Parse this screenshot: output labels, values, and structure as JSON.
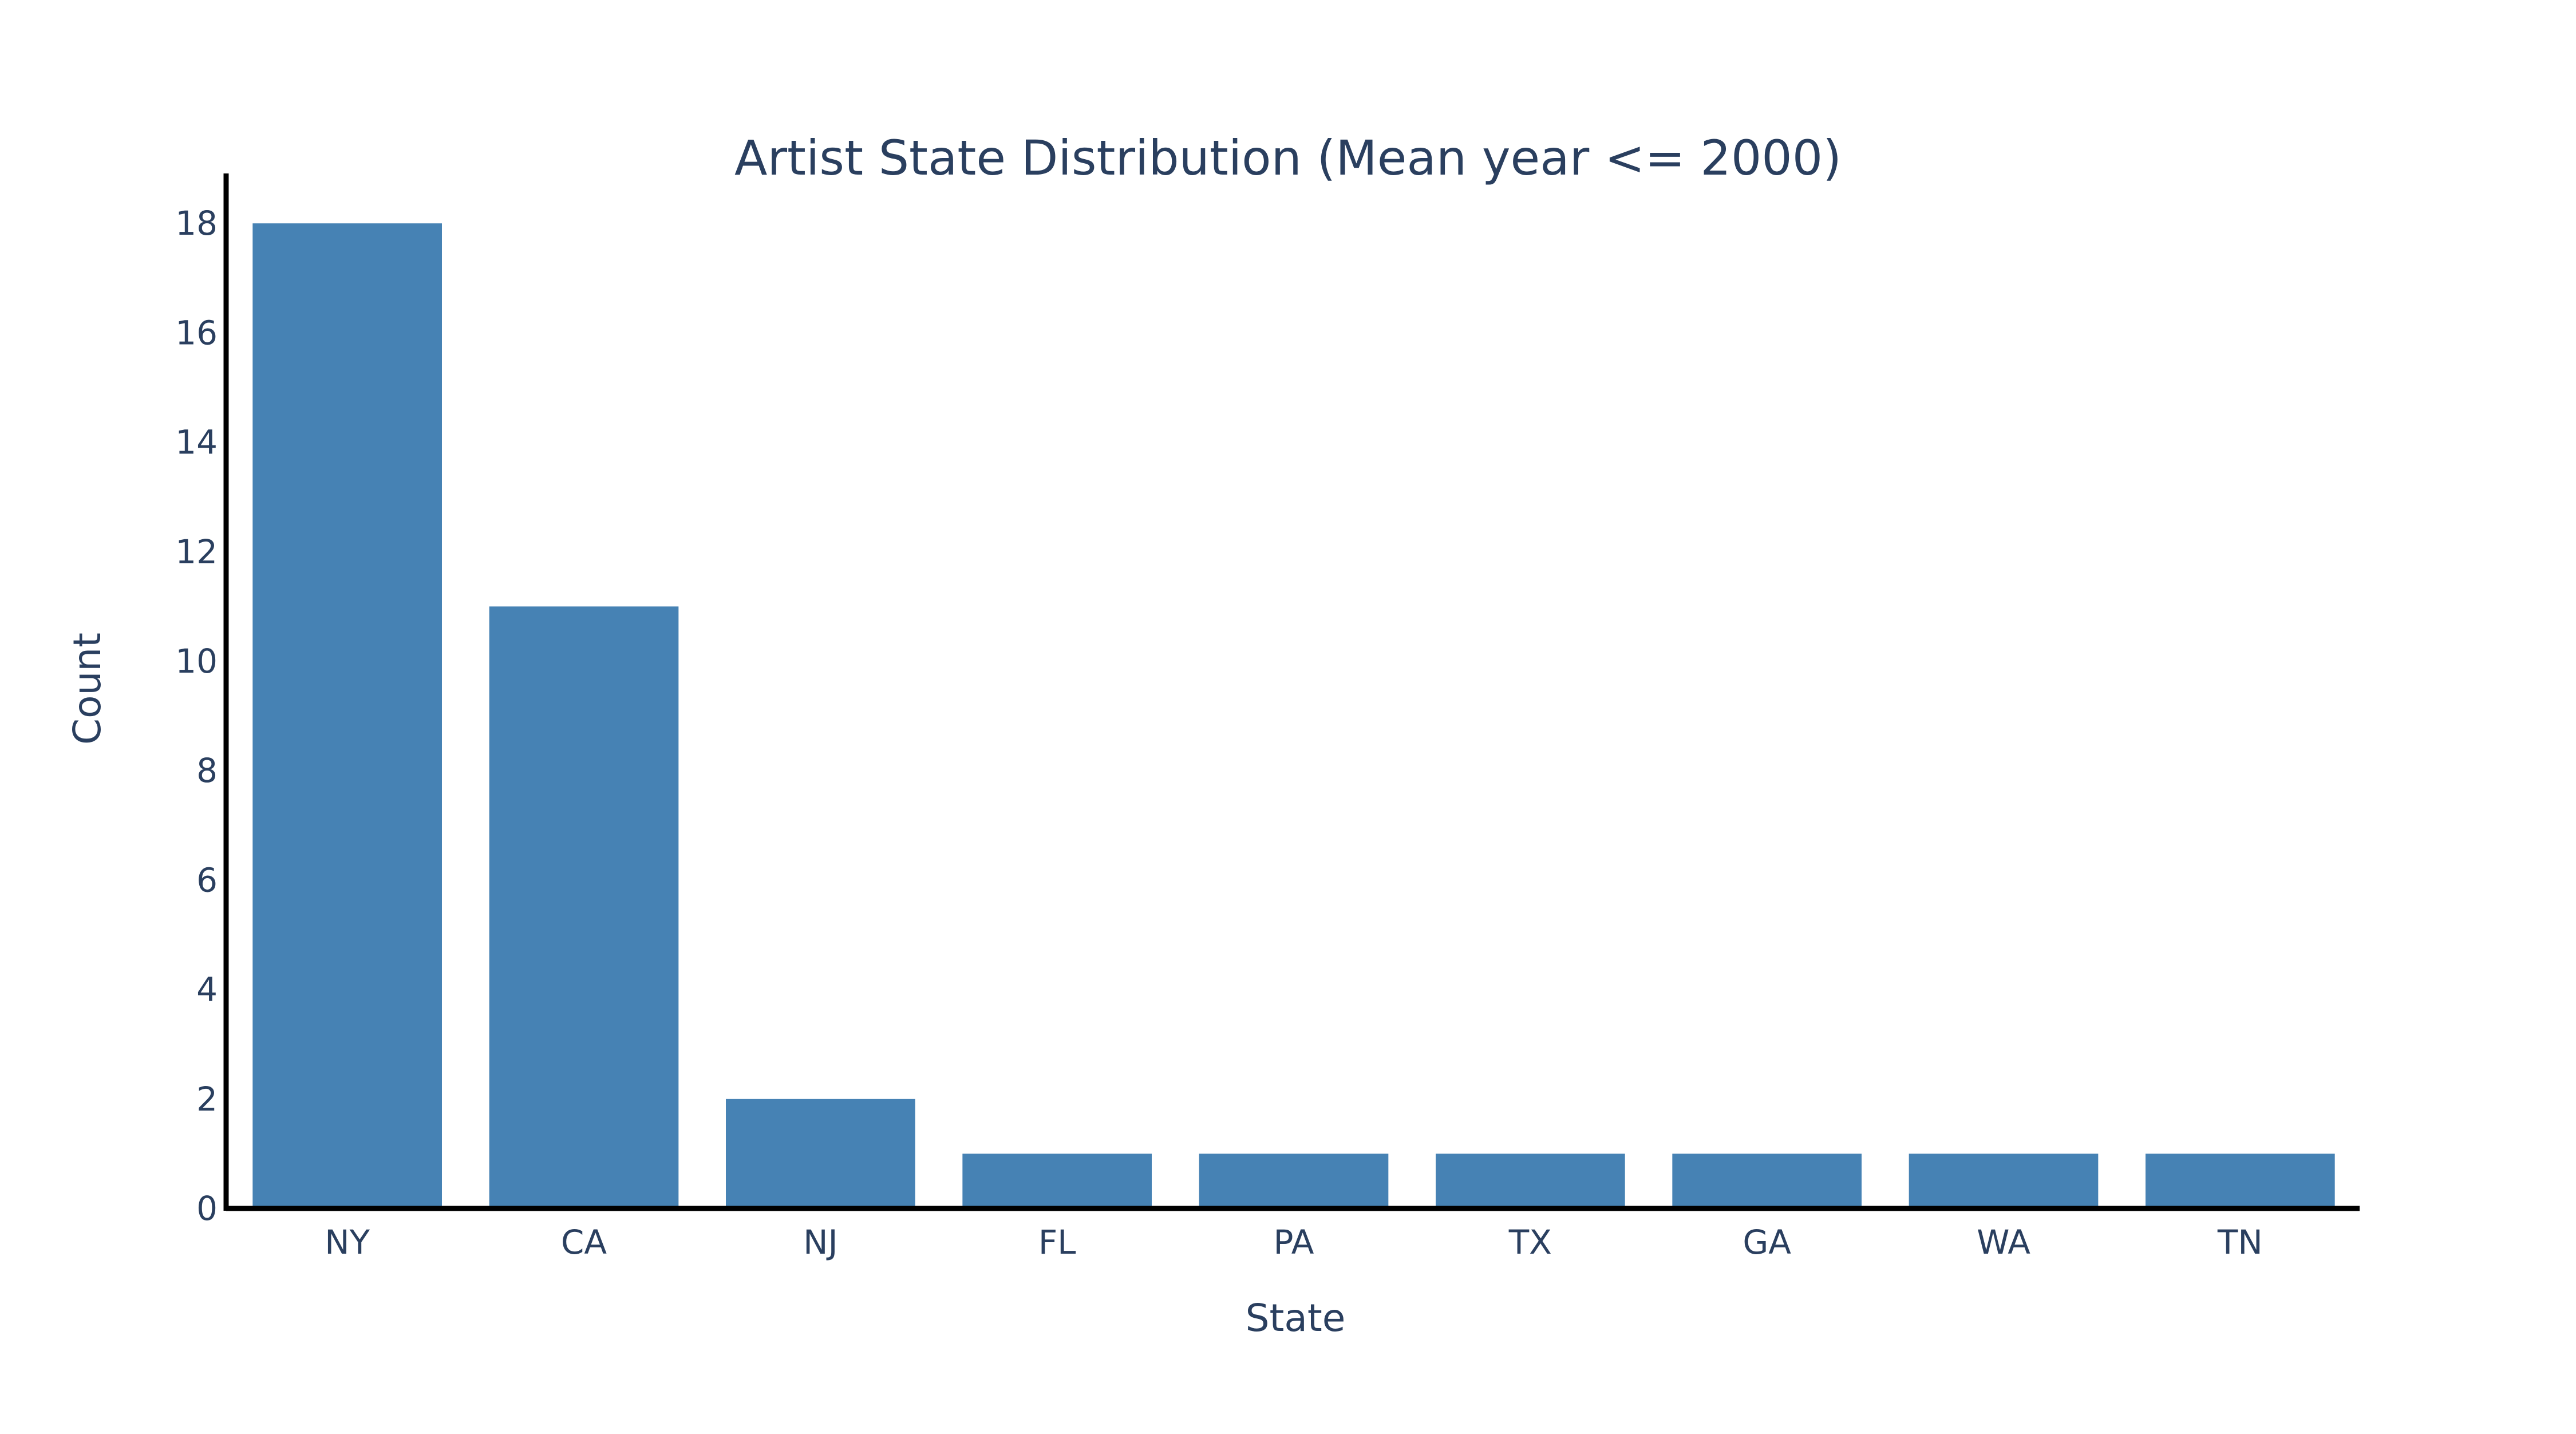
{
  "chart_data": {
    "type": "bar",
    "title": "Artist State Distribution (Mean year <= 2000)",
    "xlabel": "State",
    "ylabel": "Count",
    "categories": [
      "NY",
      "CA",
      "NJ",
      "FL",
      "PA",
      "TX",
      "GA",
      "WA",
      "TN"
    ],
    "values": [
      18,
      11,
      2,
      1,
      1,
      1,
      1,
      1,
      1
    ],
    "ylim": [
      0,
      19
    ],
    "yticks": [
      0,
      2,
      4,
      6,
      8,
      10,
      12,
      14,
      16,
      18
    ],
    "grid": false,
    "legend": "none",
    "bar_color": "#4682B4",
    "text_color": "#2A3F5F",
    "axis_color": "#000000"
  }
}
